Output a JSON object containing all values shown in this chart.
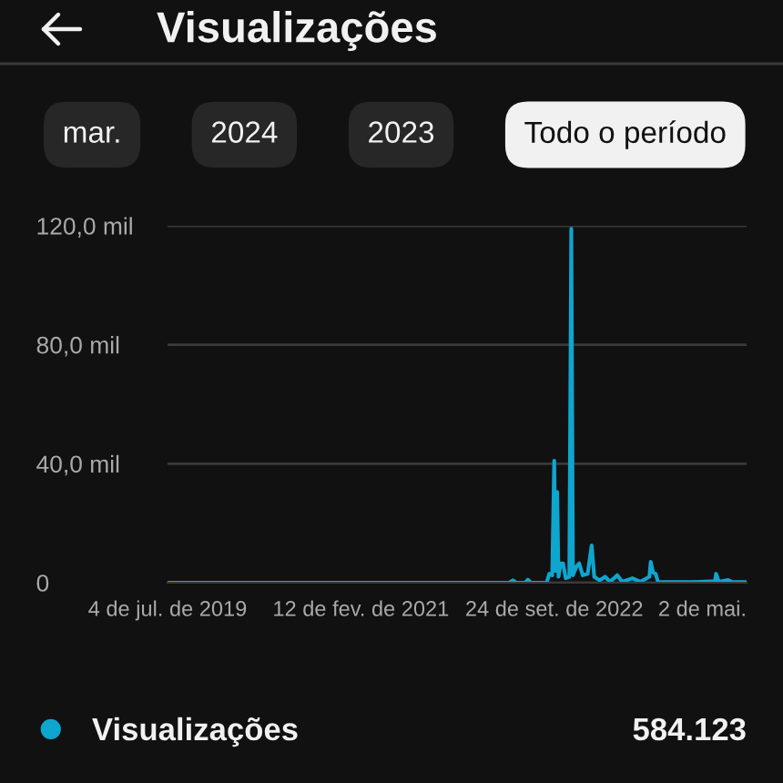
{
  "chart_data": {
    "type": "line",
    "title": "Visualizações",
    "annotations": [
      "mar.",
      "2024",
      "2023",
      "Todo o período",
      "584.123"
    ],
    "x": [
      "2019-07-04",
      "2022-05-10",
      "2022-05-21",
      "2022-06-01",
      "2022-06-28",
      "2022-07-06",
      "2022-07-14",
      "2022-09-01",
      "2022-09-09",
      "2022-09-18",
      "2022-09-24",
      "2022-09-28",
      "2022-10-03",
      "2022-10-07",
      "2022-10-14",
      "2022-10-21",
      "2022-10-29",
      "2022-11-09",
      "2022-11-15",
      "2022-11-20",
      "2022-12-01",
      "2022-12-09",
      "2022-12-20",
      "2023-01-04",
      "2023-01-16",
      "2023-01-24",
      "2023-02-09",
      "2023-02-26",
      "2023-03-13",
      "2023-04-04",
      "2023-04-19",
      "2023-05-20",
      "2023-06-13",
      "2023-07-11",
      "2023-07-15",
      "2023-07-22",
      "2023-07-30",
      "2023-08-06",
      "2023-11-18",
      "2024-01-27",
      "2024-01-30",
      "2024-02-07",
      "2024-03-07",
      "2024-03-19",
      "2024-05-02"
    ],
    "series": [
      {
        "name": "Visualizações",
        "color": "#0ea5cf",
        "values": [
          0,
          0,
          0.8,
          0,
          0,
          1,
          0,
          0,
          3,
          2.5,
          41,
          4,
          30.5,
          2,
          6.5,
          6.5,
          1.5,
          2,
          119,
          2.5,
          5.5,
          6.5,
          2.5,
          3,
          12.5,
          2,
          0.8,
          2,
          0.3,
          2.5,
          0.3,
          1.5,
          0.3,
          2,
          7,
          3.5,
          3,
          0.3,
          0.2,
          0.5,
          3,
          0.3,
          0.9,
          0.2,
          0.2
        ]
      }
    ],
    "xlim": [
      "2019-07-04",
      "2024-05-02"
    ],
    "xticks": [
      {
        "value": "2019-07-04",
        "label": "4 de jul. de 2019"
      },
      {
        "value": "2021-02-12",
        "label": "12 de fev. de 2021"
      },
      {
        "value": "2022-09-24",
        "label": "24 de set. de 2022"
      },
      {
        "value": "2024-05-02",
        "label": "2 de mai."
      }
    ],
    "ylim": [
      0,
      120
    ],
    "yticks": [
      {
        "value": 0,
        "label": "0"
      },
      {
        "value": 40,
        "label": "40,0 mil"
      },
      {
        "value": 80,
        "label": "80,0 mil"
      },
      {
        "value": 120,
        "label": "120,0 mil"
      }
    ],
    "grid": "y",
    "legend": "bottom",
    "line_style": "solid"
  }
}
